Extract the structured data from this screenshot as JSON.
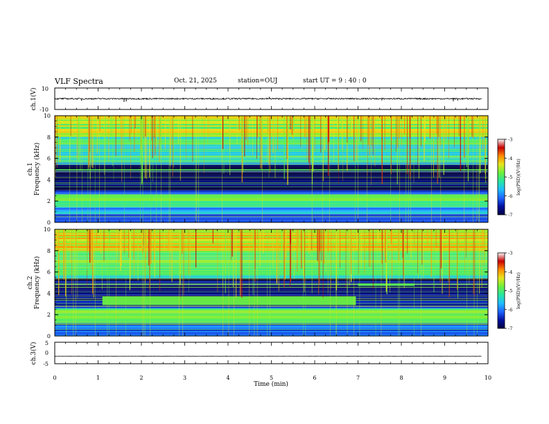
{
  "header": {
    "title": "VLF Spectra",
    "date": "Oct. 21, 2025",
    "station_prefix": "station=",
    "station": "OUJ",
    "start_prefix": "start UT =",
    "start_ut": "9 : 40 : 0"
  },
  "colors": {
    "colormap": [
      "#000040",
      "#0010a0",
      "#1e64ff",
      "#1ebeff",
      "#28e6a0",
      "#6cf03c",
      "#e6e61e",
      "#ff8c00",
      "#c80000",
      "#f8f8f8"
    ]
  },
  "chart_data": [
    {
      "type": "line",
      "id": "ch1-waveform",
      "ylabel": "ch.1(V)",
      "ylim": [
        -10,
        10
      ],
      "yticks": [
        "10",
        "-10"
      ],
      "xlim": [
        0,
        10
      ],
      "baseline": 0,
      "spikes": [
        {
          "x": 0.62,
          "y": -2.0
        },
        {
          "x": 1.6,
          "y": -3.0
        },
        {
          "x": 1.65,
          "y": -2.5
        },
        {
          "x": 4.95,
          "y": 1.8
        },
        {
          "x": 7.55,
          "y": -1.6
        },
        {
          "x": 9.2,
          "y": -2.4
        },
        {
          "x": 9.3,
          "y": -1.8
        }
      ]
    },
    {
      "type": "heatmap",
      "id": "ch1-spectrogram",
      "ylabel_top": "ch.1",
      "ylabel": "Frequency (kHz)",
      "ylim": [
        0,
        10
      ],
      "xlim": [
        0,
        10
      ],
      "yticks": [
        "0",
        "2",
        "4",
        "6",
        "8",
        "10"
      ],
      "colorbar": {
        "label": "log(PSD)(V²/Hz)",
        "range": [
          -7,
          -3
        ],
        "ticks": [
          "-3",
          "-4",
          "-5",
          "-6",
          "-7"
        ]
      },
      "bands": [
        {
          "f0": 0.0,
          "f1": 0.8,
          "level": -6.3
        },
        {
          "f0": 0.8,
          "f1": 1.5,
          "level": -5.7
        },
        {
          "f0": 1.5,
          "f1": 2.6,
          "level": -5.0
        },
        {
          "f0": 2.6,
          "f1": 3.0,
          "level": -6.4
        },
        {
          "f0": 3.0,
          "f1": 5.4,
          "level": -6.8
        },
        {
          "f0": 5.4,
          "f1": 6.0,
          "level": -5.6
        },
        {
          "f0": 6.0,
          "f1": 8.0,
          "level": -5.3
        },
        {
          "f0": 8.0,
          "f1": 10.0,
          "level": -4.6
        }
      ],
      "features": [
        {
          "label": "",
          "t0": 0.0,
          "t1": 10.0,
          "f0": 2.1,
          "f1": 2.3,
          "level": -4.7
        },
        {
          "label": "",
          "t0": 0.0,
          "t1": 10.0,
          "f0": 4.9,
          "f1": 5.0,
          "level": -4.9
        }
      ]
    },
    {
      "type": "heatmap",
      "id": "ch2-spectrogram",
      "ylabel_top": "ch.2",
      "ylabel": "Frequency (kHz)",
      "ylim": [
        0,
        10
      ],
      "xlim": [
        0,
        10
      ],
      "yticks": [
        "0",
        "2",
        "4",
        "6",
        "8",
        "10"
      ],
      "colorbar": {
        "label": "log(PSD)(V²/Hz)",
        "range": [
          -7,
          -3
        ],
        "ticks": [
          "-3",
          "-4",
          "-5",
          "-6",
          "-7"
        ]
      },
      "bands": [
        {
          "f0": 0.0,
          "f1": 1.2,
          "level": -6.2
        },
        {
          "f0": 1.2,
          "f1": 2.6,
          "level": -5.1
        },
        {
          "f0": 2.6,
          "f1": 3.0,
          "level": -6.3
        },
        {
          "f0": 3.0,
          "f1": 5.4,
          "level": -6.7
        },
        {
          "f0": 5.4,
          "f1": 6.4,
          "level": -5.3
        },
        {
          "f0": 6.4,
          "f1": 8.0,
          "level": -4.9
        },
        {
          "f0": 8.0,
          "f1": 10.0,
          "level": -4.4
        }
      ],
      "features": [
        {
          "label": "",
          "t0": 1.1,
          "t1": 6.95,
          "f0": 2.9,
          "f1": 3.7,
          "level": -4.8
        },
        {
          "label": "",
          "t0": 7.0,
          "t1": 8.3,
          "f0": 4.7,
          "f1": 4.9,
          "level": -4.9
        },
        {
          "label": "",
          "t0": 0.0,
          "t1": 10.0,
          "f0": 2.1,
          "f1": 2.4,
          "level": -4.6
        }
      ]
    },
    {
      "type": "line",
      "id": "ch3-waveform",
      "ylabel": "ch.3(V)",
      "ylim": [
        -5,
        5
      ],
      "yticks": [
        "5",
        "0",
        "-5"
      ],
      "xlim": [
        0,
        10
      ],
      "baseline": -1.5,
      "spikes": []
    }
  ],
  "x_axis": {
    "label": "Time (min)",
    "ticks": [
      "0",
      "1",
      "2",
      "3",
      "4",
      "5",
      "6",
      "7",
      "8",
      "9",
      "10"
    ]
  }
}
